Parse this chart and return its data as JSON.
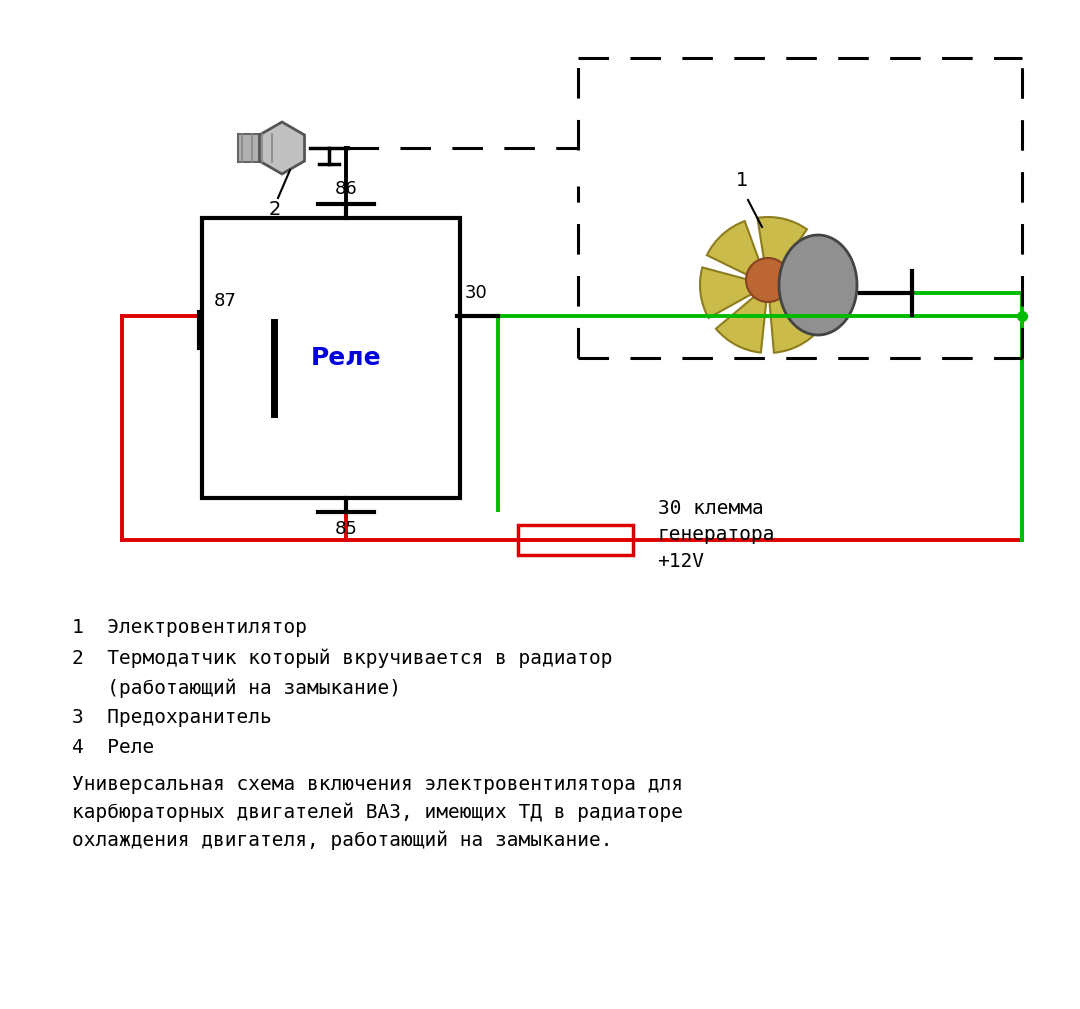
{
  "bg_color": "#ffffff",
  "relay_label": "Реле",
  "relay_label_color": "#0000dd",
  "text_legend": [
    "1  Электровентилятор",
    "2  Термодатчик который вкручивается в радиатор",
    "   (работающий на замыкание)",
    "3  Предохранитель",
    "4  Реле"
  ],
  "text_description": "Универсальная схема включения электровентилятора для\nкарбюраторных двигателей ВАЗ, имеющих ТД в радиаторе\nохлаждения двигателя, работающий на замыкание.",
  "label_30_text": "30 клемма\nгенератора\n+12V",
  "red_color": "#dd0000",
  "green_color": "#00bb00",
  "black_color": "#000000",
  "fig_w": 10.8,
  "fig_h": 10.09,
  "dpi": 100
}
